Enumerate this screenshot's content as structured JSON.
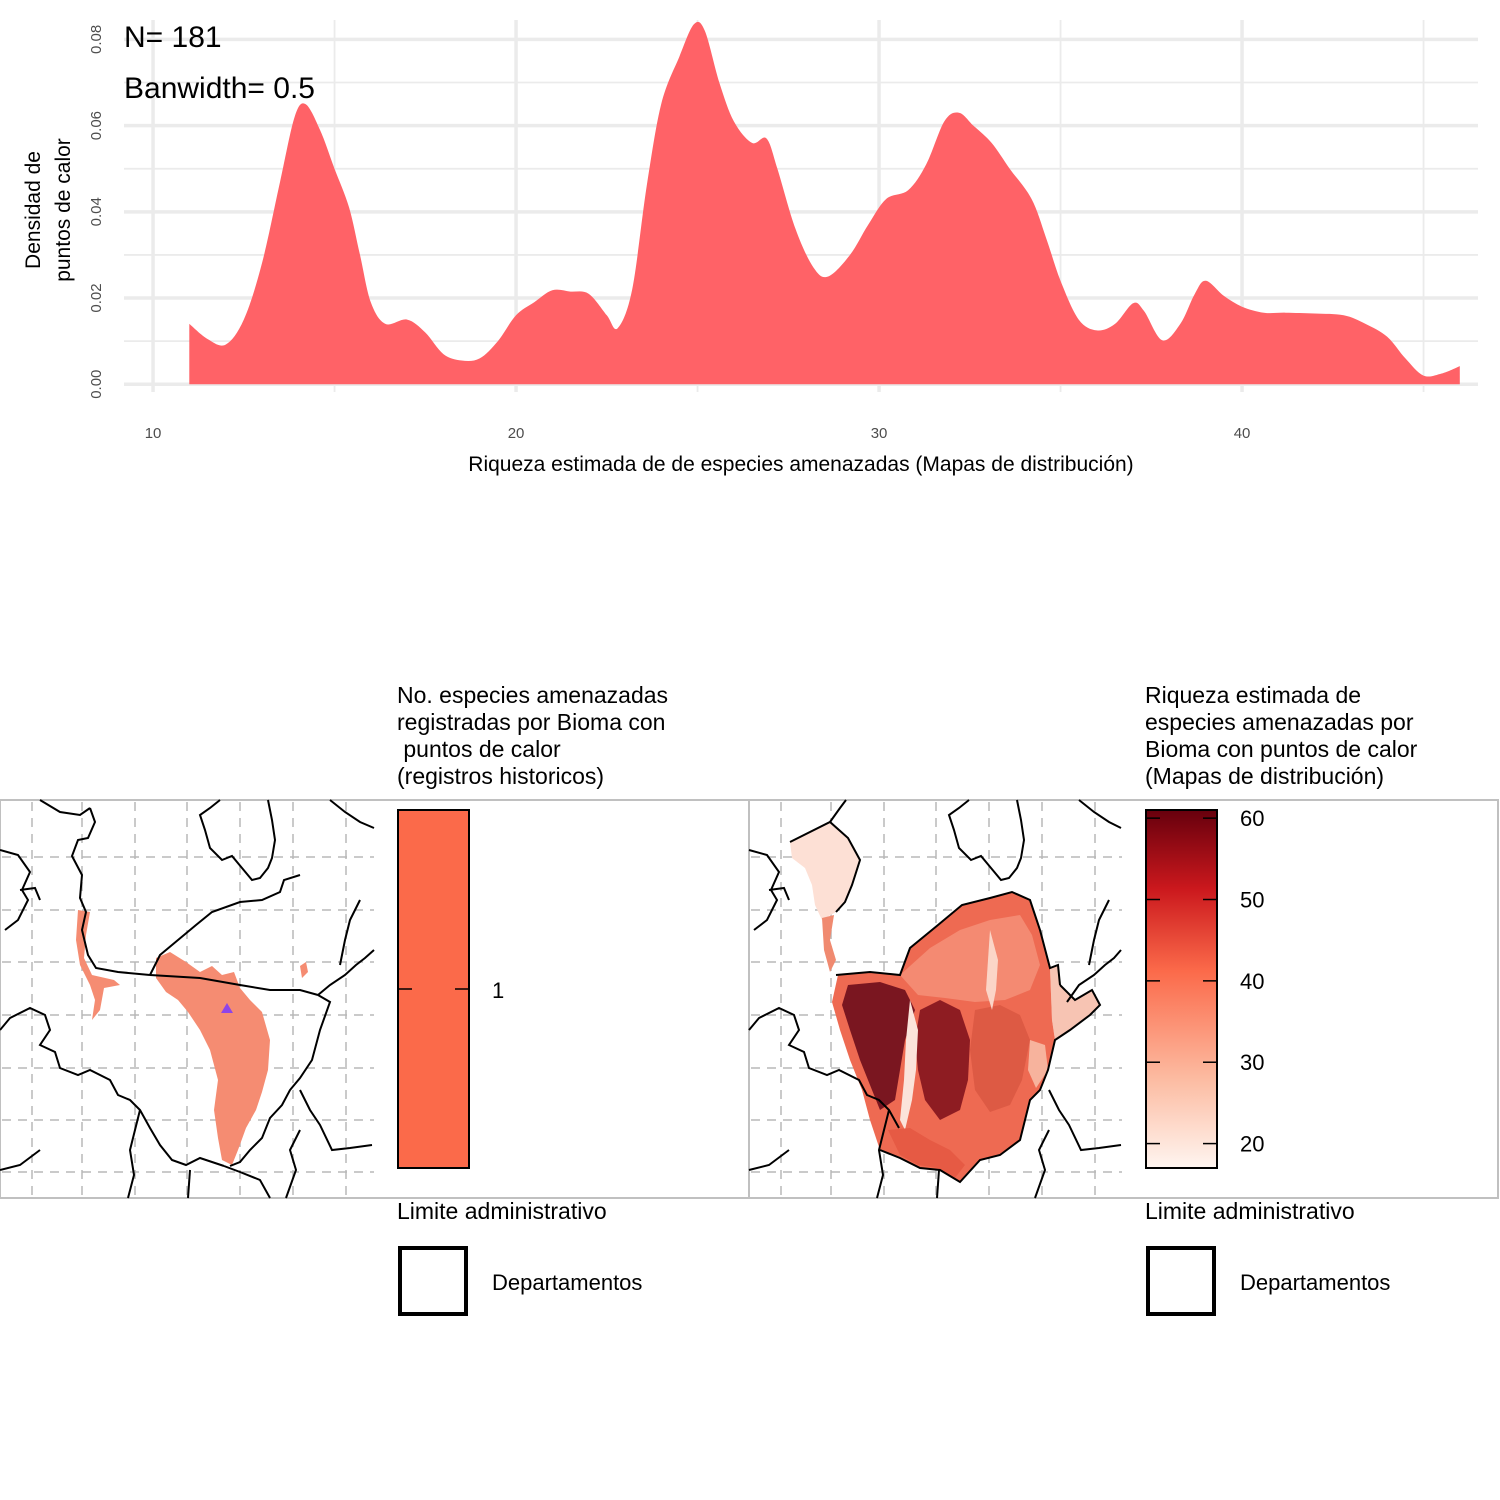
{
  "chart_data": [
    {
      "type": "area",
      "subtype": "density",
      "annotations": [
        "N= 181",
        "Banwidth= 0.5"
      ],
      "xlabel": "Riqueza estimada de de especies amenazadas (Mapas de distribución)",
      "ylabel_lines": [
        "Densidad de",
        "puntos de calor"
      ],
      "xlim": [
        9.2,
        46.5
      ],
      "ylim": [
        -0.0018,
        0.0845
      ],
      "x_ticks": [
        "10",
        "20",
        "30",
        "40"
      ],
      "y_ticks": [
        "0.00",
        "0.02",
        "0.04",
        "0.06",
        "0.08"
      ],
      "grid": true,
      "fill_color": "#ff6267",
      "points": [
        [
          11.0,
          0.014
        ],
        [
          11.5,
          0.0105
        ],
        [
          12.0,
          0.0092
        ],
        [
          12.5,
          0.015
        ],
        [
          13.0,
          0.028
        ],
        [
          13.5,
          0.047
        ],
        [
          13.9,
          0.062
        ],
        [
          14.2,
          0.065
        ],
        [
          14.6,
          0.059
        ],
        [
          15.0,
          0.05
        ],
        [
          15.4,
          0.041
        ],
        [
          15.7,
          0.03
        ],
        [
          16.0,
          0.019
        ],
        [
          16.4,
          0.014
        ],
        [
          17.0,
          0.015
        ],
        [
          17.5,
          0.012
        ],
        [
          18.0,
          0.007
        ],
        [
          18.5,
          0.0055
        ],
        [
          19.0,
          0.006
        ],
        [
          19.5,
          0.01
        ],
        [
          20.0,
          0.016
        ],
        [
          20.5,
          0.019
        ],
        [
          21.0,
          0.0218
        ],
        [
          21.5,
          0.0215
        ],
        [
          22.0,
          0.021
        ],
        [
          22.5,
          0.016
        ],
        [
          22.8,
          0.013
        ],
        [
          23.2,
          0.022
        ],
        [
          23.6,
          0.046
        ],
        [
          24.0,
          0.065
        ],
        [
          24.5,
          0.076
        ],
        [
          24.9,
          0.0835
        ],
        [
          25.2,
          0.082
        ],
        [
          25.6,
          0.07
        ],
        [
          26.0,
          0.061
        ],
        [
          26.5,
          0.056
        ],
        [
          26.9,
          0.057
        ],
        [
          27.2,
          0.05
        ],
        [
          27.7,
          0.036
        ],
        [
          28.2,
          0.027
        ],
        [
          28.6,
          0.025
        ],
        [
          29.2,
          0.03
        ],
        [
          29.7,
          0.037
        ],
        [
          30.2,
          0.043
        ],
        [
          30.8,
          0.045
        ],
        [
          31.3,
          0.051
        ],
        [
          31.8,
          0.061
        ],
        [
          32.2,
          0.063
        ],
        [
          32.6,
          0.06
        ],
        [
          33.1,
          0.056
        ],
        [
          33.6,
          0.05
        ],
        [
          34.2,
          0.043
        ],
        [
          34.6,
          0.034
        ],
        [
          35.0,
          0.024
        ],
        [
          35.5,
          0.015
        ],
        [
          36.0,
          0.0125
        ],
        [
          36.5,
          0.014
        ],
        [
          37.0,
          0.0188
        ],
        [
          37.3,
          0.017
        ],
        [
          37.8,
          0.0102
        ],
        [
          38.3,
          0.014
        ],
        [
          38.7,
          0.021
        ],
        [
          39.0,
          0.024
        ],
        [
          39.5,
          0.0205
        ],
        [
          40.0,
          0.018
        ],
        [
          40.6,
          0.0166
        ],
        [
          41.2,
          0.0166
        ],
        [
          42.0,
          0.0164
        ],
        [
          42.8,
          0.016
        ],
        [
          43.4,
          0.014
        ],
        [
          44.0,
          0.011
        ],
        [
          44.5,
          0.006
        ],
        [
          45.0,
          0.002
        ],
        [
          45.5,
          0.0025
        ],
        [
          46.0,
          0.0042
        ]
      ]
    },
    {
      "type": "heatmap",
      "subtype": "choropleth-map",
      "legend_title_lines": [
        "No. especies amenazadas",
        "registradas por Bioma con",
        " puntos de calor",
        "(registros historicos)"
      ],
      "legend_labels": [
        "1"
      ],
      "legend_fill": "#fb6a4a",
      "secondary_legend_title": "Limite administrativo",
      "secondary_legend_item": "Departamentos"
    },
    {
      "type": "heatmap",
      "subtype": "choropleth-map",
      "legend_title_lines": [
        "Riqueza estimada de",
        "especies amenazadas por",
        "Bioma con puntos de calor",
        "(Mapas de distribución)"
      ],
      "legend_labels": [
        "60",
        "50",
        "40",
        "30",
        "20"
      ],
      "legend_range": [
        17,
        61
      ],
      "color_scale": [
        "#fff5f0",
        "#fcbba1",
        "#fb6a4a",
        "#cb181d",
        "#67000d"
      ],
      "secondary_legend_title": "Limite administrativo",
      "secondary_legend_item": "Departamentos"
    }
  ]
}
